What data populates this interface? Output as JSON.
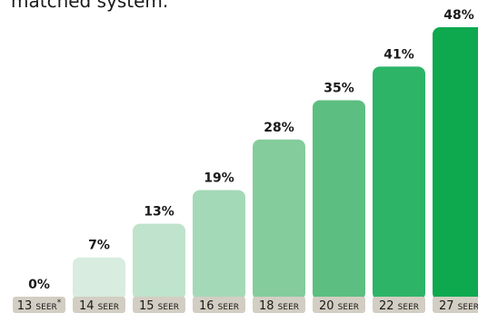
{
  "caption": "matched system.",
  "chart_data": {
    "type": "bar",
    "categories": [
      "13",
      "14",
      "15",
      "16",
      "18",
      "20",
      "22",
      "27"
    ],
    "unit_label": "SEER",
    "first_category_marker": "*",
    "values": [
      0,
      7,
      13,
      19,
      28,
      35,
      41,
      48
    ],
    "value_labels": [
      "0%",
      "7%",
      "13%",
      "19%",
      "28%",
      "35%",
      "41%",
      "48%"
    ],
    "ylim": [
      0,
      48
    ],
    "bar_colors": [
      "#e6efe8",
      "#d8ece0",
      "#bfe3cc",
      "#a4d9b7",
      "#84cc9c",
      "#5cbe80",
      "#2db467",
      "#0ea84f"
    ],
    "tick_bg_color": "#d3cec3"
  }
}
